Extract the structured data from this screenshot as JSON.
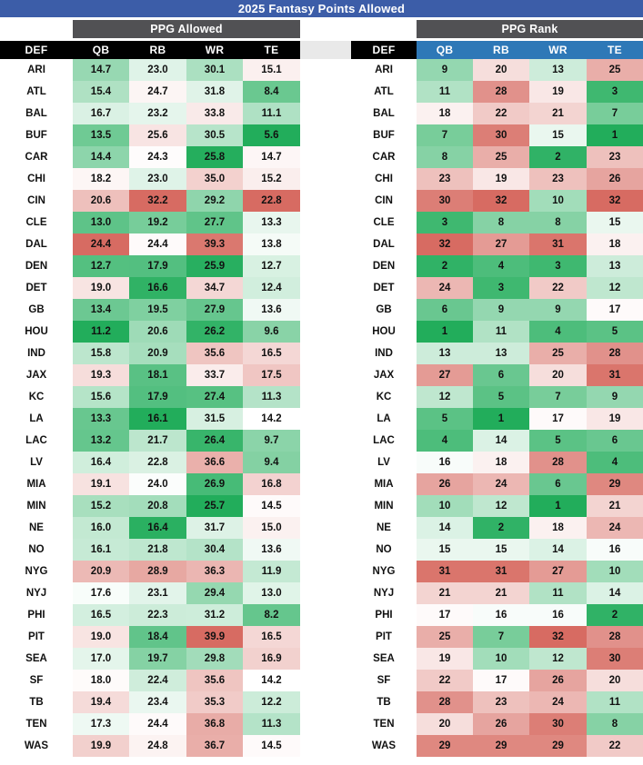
{
  "title": "2025 Fantasy Points Allowed",
  "colors": {
    "title_bar_bg": "#3c5da8",
    "group_header_bg": "#515154",
    "column_header_black_bg": "#000000",
    "column_header_blue_bg": "#2e78b7",
    "header_text": "#ffffff",
    "gap_strip_bg": "#e9e9e9",
    "scale_green": "#22ad5b",
    "scale_white": "#ffffff",
    "scale_red": "#d76b62",
    "cell_text": "#111111"
  },
  "chart_data": [
    {
      "type": "heatmap",
      "title": "PPG Allowed",
      "columns": [
        "DEF",
        "QB",
        "RB",
        "WR",
        "TE"
      ],
      "rows": [
        {
          "team": "ARI",
          "values": [
            "14.7",
            "23.0",
            "30.1",
            "15.1"
          ]
        },
        {
          "team": "ATL",
          "values": [
            "15.4",
            "24.7",
            "31.8",
            "8.4"
          ]
        },
        {
          "team": "BAL",
          "values": [
            "16.7",
            "23.2",
            "33.8",
            "11.1"
          ]
        },
        {
          "team": "BUF",
          "values": [
            "13.5",
            "25.6",
            "30.5",
            "5.6"
          ]
        },
        {
          "team": "CAR",
          "values": [
            "14.4",
            "24.3",
            "25.8",
            "14.7"
          ]
        },
        {
          "team": "CHI",
          "values": [
            "18.2",
            "23.0",
            "35.0",
            "15.2"
          ]
        },
        {
          "team": "CIN",
          "values": [
            "20.6",
            "32.2",
            "29.2",
            "22.8"
          ]
        },
        {
          "team": "CLE",
          "values": [
            "13.0",
            "19.2",
            "27.7",
            "13.3"
          ]
        },
        {
          "team": "DAL",
          "values": [
            "24.4",
            "24.4",
            "39.3",
            "13.8"
          ]
        },
        {
          "team": "DEN",
          "values": [
            "12.7",
            "17.9",
            "25.9",
            "12.7"
          ]
        },
        {
          "team": "DET",
          "values": [
            "19.0",
            "16.6",
            "34.7",
            "12.4"
          ]
        },
        {
          "team": "GB",
          "values": [
            "13.4",
            "19.5",
            "27.9",
            "13.6"
          ]
        },
        {
          "team": "HOU",
          "values": [
            "11.2",
            "20.6",
            "26.2",
            "9.6"
          ]
        },
        {
          "team": "IND",
          "values": [
            "15.8",
            "20.9",
            "35.6",
            "16.5"
          ]
        },
        {
          "team": "JAX",
          "values": [
            "19.3",
            "18.1",
            "33.7",
            "17.5"
          ]
        },
        {
          "team": "KC",
          "values": [
            "15.6",
            "17.9",
            "27.4",
            "11.3"
          ]
        },
        {
          "team": "LA",
          "values": [
            "13.3",
            "16.1",
            "31.5",
            "14.2"
          ]
        },
        {
          "team": "LAC",
          "values": [
            "13.2",
            "21.7",
            "26.4",
            "9.7"
          ]
        },
        {
          "team": "LV",
          "values": [
            "16.4",
            "22.8",
            "36.6",
            "9.4"
          ]
        },
        {
          "team": "MIA",
          "values": [
            "19.1",
            "24.0",
            "26.9",
            "16.8"
          ]
        },
        {
          "team": "MIN",
          "values": [
            "15.2",
            "20.8",
            "25.7",
            "14.5"
          ]
        },
        {
          "team": "NE",
          "values": [
            "16.0",
            "16.4",
            "31.7",
            "15.0"
          ]
        },
        {
          "team": "NO",
          "values": [
            "16.1",
            "21.8",
            "30.4",
            "13.6"
          ]
        },
        {
          "team": "NYG",
          "values": [
            "20.9",
            "28.9",
            "36.3",
            "11.9"
          ]
        },
        {
          "team": "NYJ",
          "values": [
            "17.6",
            "23.1",
            "29.4",
            "13.0"
          ]
        },
        {
          "team": "PHI",
          "values": [
            "16.5",
            "22.3",
            "31.2",
            "8.2"
          ]
        },
        {
          "team": "PIT",
          "values": [
            "19.0",
            "18.4",
            "39.9",
            "16.5"
          ]
        },
        {
          "team": "SEA",
          "values": [
            "17.0",
            "19.7",
            "29.8",
            "16.9"
          ]
        },
        {
          "team": "SF",
          "values": [
            "18.0",
            "22.4",
            "35.6",
            "14.2"
          ]
        },
        {
          "team": "TB",
          "values": [
            "19.4",
            "23.4",
            "35.3",
            "12.2"
          ]
        },
        {
          "team": "TEN",
          "values": [
            "17.3",
            "24.4",
            "36.8",
            "11.3"
          ]
        },
        {
          "team": "WAS",
          "values": [
            "19.9",
            "24.8",
            "36.7",
            "14.5"
          ]
        }
      ]
    },
    {
      "type": "heatmap",
      "title": "PPG Rank",
      "columns": [
        "DEF",
        "QB",
        "RB",
        "WR",
        "TE"
      ],
      "rows": [
        {
          "team": "ARI",
          "values": [
            9,
            20,
            13,
            25
          ]
        },
        {
          "team": "ATL",
          "values": [
            11,
            28,
            19,
            3
          ]
        },
        {
          "team": "BAL",
          "values": [
            18,
            22,
            21,
            7
          ]
        },
        {
          "team": "BUF",
          "values": [
            7,
            30,
            15,
            1
          ]
        },
        {
          "team": "CAR",
          "values": [
            8,
            25,
            2,
            23
          ]
        },
        {
          "team": "CHI",
          "values": [
            23,
            19,
            23,
            26
          ]
        },
        {
          "team": "CIN",
          "values": [
            30,
            32,
            10,
            32
          ]
        },
        {
          "team": "CLE",
          "values": [
            3,
            8,
            8,
            15
          ]
        },
        {
          "team": "DAL",
          "values": [
            32,
            27,
            31,
            18
          ]
        },
        {
          "team": "DEN",
          "values": [
            2,
            4,
            3,
            13
          ]
        },
        {
          "team": "DET",
          "values": [
            24,
            3,
            22,
            12
          ]
        },
        {
          "team": "GB",
          "values": [
            6,
            9,
            9,
            17
          ]
        },
        {
          "team": "HOU",
          "values": [
            1,
            11,
            4,
            5
          ]
        },
        {
          "team": "IND",
          "values": [
            13,
            13,
            25,
            28
          ]
        },
        {
          "team": "JAX",
          "values": [
            27,
            6,
            20,
            31
          ]
        },
        {
          "team": "KC",
          "values": [
            12,
            5,
            7,
            9
          ]
        },
        {
          "team": "LA",
          "values": [
            5,
            1,
            17,
            19
          ]
        },
        {
          "team": "LAC",
          "values": [
            4,
            14,
            5,
            6
          ]
        },
        {
          "team": "LV",
          "values": [
            16,
            18,
            28,
            4
          ]
        },
        {
          "team": "MIA",
          "values": [
            26,
            24,
            6,
            29
          ]
        },
        {
          "team": "MIN",
          "values": [
            10,
            12,
            1,
            21
          ]
        },
        {
          "team": "NE",
          "values": [
            14,
            2,
            18,
            24
          ]
        },
        {
          "team": "NO",
          "values": [
            15,
            15,
            14,
            16
          ]
        },
        {
          "team": "NYG",
          "values": [
            31,
            31,
            27,
            10
          ]
        },
        {
          "team": "NYJ",
          "values": [
            21,
            21,
            11,
            14
          ]
        },
        {
          "team": "PHI",
          "values": [
            17,
            16,
            16,
            2
          ]
        },
        {
          "team": "PIT",
          "values": [
            25,
            7,
            32,
            28
          ]
        },
        {
          "team": "SEA",
          "values": [
            19,
            10,
            12,
            30
          ]
        },
        {
          "team": "SF",
          "values": [
            22,
            17,
            26,
            20
          ]
        },
        {
          "team": "TB",
          "values": [
            28,
            23,
            24,
            11
          ]
        },
        {
          "team": "TEN",
          "values": [
            20,
            26,
            30,
            8
          ]
        },
        {
          "team": "WAS",
          "values": [
            29,
            29,
            29,
            22
          ]
        }
      ]
    }
  ]
}
